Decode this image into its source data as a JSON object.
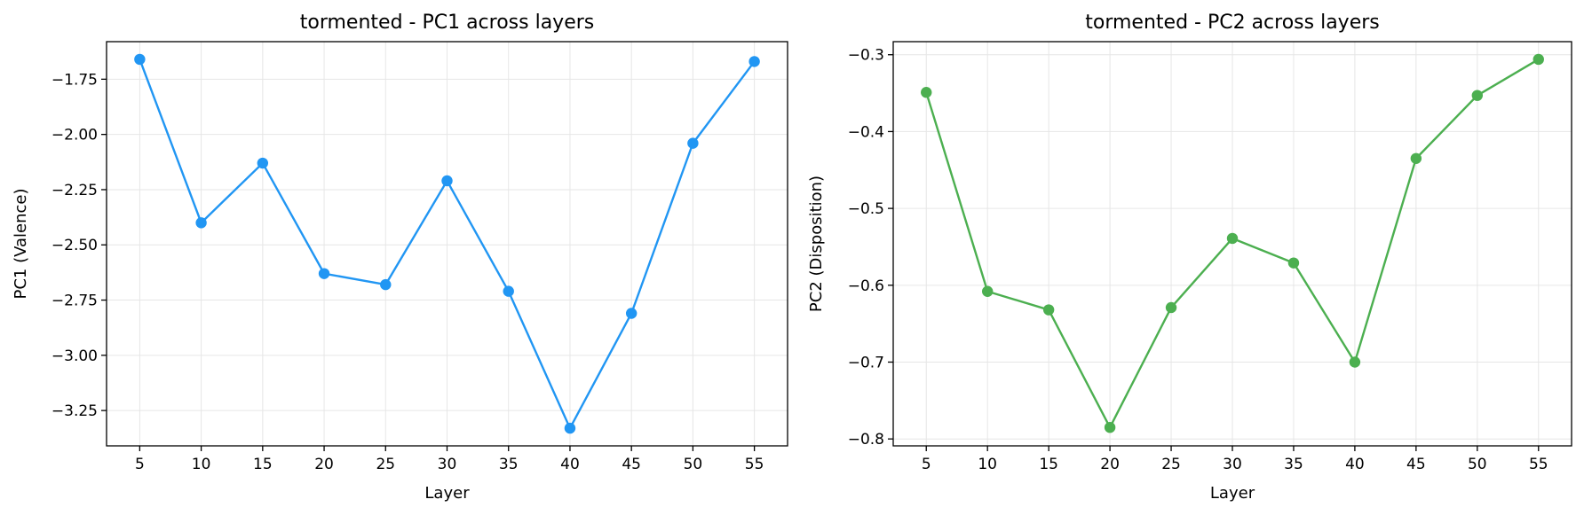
{
  "chart_data": [
    {
      "type": "line",
      "title": "tormented - PC1 across layers",
      "xlabel": "Layer",
      "ylabel": "PC1 (Valence)",
      "x": [
        5,
        10,
        15,
        20,
        25,
        30,
        35,
        40,
        45,
        50,
        55
      ],
      "series": [
        {
          "values": [
            -1.66,
            -2.4,
            -2.13,
            -2.63,
            -2.68,
            -2.21,
            -2.71,
            -3.33,
            -2.81,
            -2.04,
            -1.67
          ]
        }
      ],
      "xticks": [
        5,
        10,
        15,
        20,
        25,
        30,
        35,
        40,
        45,
        50,
        55
      ],
      "yticks": [
        -1.75,
        -2.0,
        -2.25,
        -2.5,
        -2.75,
        -3.0,
        -3.25
      ],
      "ytick_labels": [
        "−1.75",
        "−2.00",
        "−2.25",
        "−2.50",
        "−2.75",
        "−3.00",
        "−3.25"
      ],
      "xlim": [
        2.3,
        57.7
      ],
      "ylim": [
        -3.41,
        -1.58
      ],
      "color": "#2196F3",
      "grid": true
    },
    {
      "type": "line",
      "title": "tormented - PC2 across layers",
      "xlabel": "Layer",
      "ylabel": "PC2 (Disposition)",
      "x": [
        5,
        10,
        15,
        20,
        25,
        30,
        35,
        40,
        45,
        50,
        55
      ],
      "series": [
        {
          "values": [
            -0.349,
            -0.608,
            -0.632,
            -0.785,
            -0.629,
            -0.539,
            -0.571,
            -0.7,
            -0.435,
            -0.353,
            -0.306
          ]
        }
      ],
      "xticks": [
        5,
        10,
        15,
        20,
        25,
        30,
        35,
        40,
        45,
        50,
        55
      ],
      "yticks": [
        -0.3,
        -0.4,
        -0.5,
        -0.6,
        -0.7,
        -0.8
      ],
      "ytick_labels": [
        "−0.3",
        "−0.4",
        "−0.5",
        "−0.6",
        "−0.7",
        "−0.8"
      ],
      "xlim": [
        2.3,
        57.7
      ],
      "ylim": [
        -0.809,
        -0.283
      ],
      "color": "#4CAF50",
      "grid": true
    }
  ]
}
